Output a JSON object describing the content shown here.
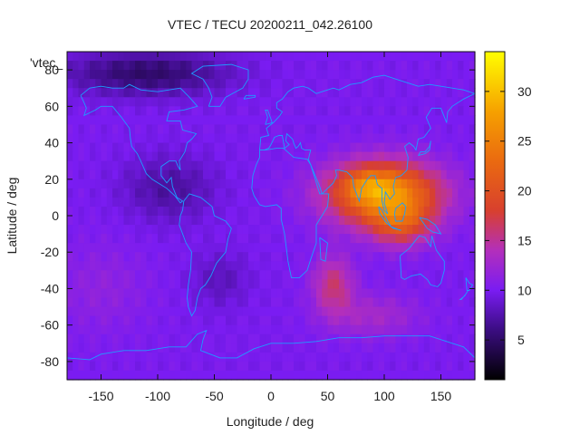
{
  "chart_data": {
    "type": "heatmap",
    "title": "VTEC / TECU 20200211_042.26100",
    "xlabel": "Longitude / deg",
    "ylabel": "Latitude / deg",
    "legend_key": "'vtec_",
    "xlim": [
      -180,
      180
    ],
    "ylim": [
      -90,
      90
    ],
    "x_ticks": [
      -150,
      -100,
      -50,
      0,
      50,
      100,
      150
    ],
    "y_ticks": [
      -80,
      -60,
      -40,
      -20,
      0,
      20,
      40,
      60,
      80
    ],
    "colorbar": {
      "min": 1,
      "max": 34,
      "ticks": [
        5,
        10,
        15,
        20,
        25,
        30
      ],
      "stops": [
        {
          "v": 1,
          "color": "#000000"
        },
        {
          "v": 6,
          "color": "#3b0d82"
        },
        {
          "v": 10,
          "color": "#7a1cf2"
        },
        {
          "v": 14,
          "color": "#b32fbb"
        },
        {
          "v": 18,
          "color": "#d8402e"
        },
        {
          "v": 23,
          "color": "#ea6a10"
        },
        {
          "v": 28,
          "color": "#f6a100"
        },
        {
          "v": 34,
          "color": "#ffff00"
        }
      ]
    },
    "grid": {
      "dlon": 5,
      "dlat": 5
    },
    "field_model": {
      "background": 10,
      "features": [
        {
          "lon": 100,
          "lat": 12,
          "slon": 48,
          "slat": 17,
          "amp": 17
        },
        {
          "lon": 115,
          "lat": -5,
          "slon": 26,
          "slat": 12,
          "amp": 7
        },
        {
          "lon": 85,
          "lat": 17,
          "slon": 22,
          "slat": 8,
          "amp": 4
        },
        {
          "lon": 55,
          "lat": -38,
          "slon": 18,
          "slat": 16,
          "amp": 6
        },
        {
          "lon": 90,
          "lat": -55,
          "slon": 40,
          "slat": 12,
          "amp": 3
        },
        {
          "lon": -90,
          "lat": 15,
          "slon": 40,
          "slat": 18,
          "amp": -3
        },
        {
          "lon": -110,
          "lat": 78,
          "slon": 70,
          "slat": 12,
          "amp": -5
        },
        {
          "lon": -45,
          "lat": -35,
          "slon": 25,
          "slat": 15,
          "amp": -2
        },
        {
          "lon": -150,
          "lat": -40,
          "slon": 40,
          "slat": 25,
          "amp": 1.5
        }
      ]
    },
    "coastlines": [
      [
        [
          -168,
          66
        ],
        [
          -160,
          70
        ],
        [
          -150,
          71
        ],
        [
          -140,
          70
        ],
        [
          -130,
          70
        ],
        [
          -125,
          72
        ],
        [
          -115,
          69
        ],
        [
          -100,
          68
        ],
        [
          -90,
          69
        ],
        [
          -80,
          70
        ],
        [
          -72,
          65
        ],
        [
          -65,
          60
        ],
        [
          -77,
          58
        ],
        [
          -90,
          57
        ],
        [
          -92,
          52
        ],
        [
          -80,
          52
        ],
        [
          -78,
          47
        ],
        [
          -66,
          45
        ],
        [
          -70,
          42
        ],
        [
          -74,
          40
        ],
        [
          -76,
          35
        ],
        [
          -81,
          30
        ],
        [
          -80,
          25
        ],
        [
          -82,
          27
        ],
        [
          -84,
          30
        ],
        [
          -90,
          30
        ],
        [
          -97,
          27
        ],
        [
          -97,
          22
        ],
        [
          -92,
          18
        ],
        [
          -88,
          21
        ],
        [
          -87,
          16
        ],
        [
          -83,
          10
        ],
        [
          -78,
          8
        ],
        [
          -80,
          7
        ],
        [
          -85,
          11
        ],
        [
          -92,
          15
        ],
        [
          -105,
          20
        ],
        [
          -110,
          23
        ],
        [
          -115,
          30
        ],
        [
          -118,
          34
        ],
        [
          -123,
          38
        ],
        [
          -124,
          42
        ],
        [
          -125,
          48
        ],
        [
          -132,
          54
        ],
        [
          -140,
          60
        ],
        [
          -150,
          60
        ],
        [
          -155,
          58
        ],
        [
          -165,
          55
        ],
        [
          -163,
          59
        ],
        [
          -165,
          62
        ],
        [
          -168,
          66
        ]
      ],
      [
        [
          -77,
          8
        ],
        [
          -72,
          12
        ],
        [
          -62,
          10
        ],
        [
          -52,
          5
        ],
        [
          -50,
          0
        ],
        [
          -40,
          -3
        ],
        [
          -35,
          -7
        ],
        [
          -38,
          -13
        ],
        [
          -40,
          -20
        ],
        [
          -48,
          -26
        ],
        [
          -53,
          -33
        ],
        [
          -58,
          -38
        ],
        [
          -62,
          -40
        ],
        [
          -65,
          -45
        ],
        [
          -67,
          -52
        ],
        [
          -70,
          -55
        ],
        [
          -73,
          -50
        ],
        [
          -74,
          -45
        ],
        [
          -73,
          -38
        ],
        [
          -71,
          -30
        ],
        [
          -70,
          -20
        ],
        [
          -75,
          -15
        ],
        [
          -81,
          -5
        ],
        [
          -80,
          0
        ],
        [
          -78,
          3
        ],
        [
          -77,
          8
        ]
      ],
      [
        [
          -10,
          36
        ],
        [
          -5,
          36
        ],
        [
          5,
          37
        ],
        [
          11,
          37
        ],
        [
          20,
          32
        ],
        [
          32,
          31
        ],
        [
          35,
          28
        ],
        [
          43,
          12
        ],
        [
          51,
          12
        ],
        [
          50,
          5
        ],
        [
          40,
          -5
        ],
        [
          40,
          -15
        ],
        [
          35,
          -24
        ],
        [
          32,
          -30
        ],
        [
          25,
          -34
        ],
        [
          18,
          -34
        ],
        [
          15,
          -25
        ],
        [
          12,
          -10
        ],
        [
          9,
          -2
        ],
        [
          9,
          4
        ],
        [
          5,
          6
        ],
        [
          -5,
          5
        ],
        [
          -10,
          6
        ],
        [
          -15,
          11
        ],
        [
          -17,
          15
        ],
        [
          -16,
          22
        ],
        [
          -13,
          28
        ],
        [
          -10,
          32
        ],
        [
          -10,
          36
        ]
      ],
      [
        [
          -10,
          36
        ],
        [
          -9,
          43
        ],
        [
          -2,
          44
        ],
        [
          -4,
          48
        ],
        [
          2,
          51
        ],
        [
          5,
          53
        ],
        [
          8,
          55
        ],
        [
          10,
          57
        ],
        [
          5,
          59
        ],
        [
          5,
          62
        ],
        [
          10,
          64
        ],
        [
          15,
          68
        ],
        [
          20,
          70
        ],
        [
          28,
          71
        ],
        [
          33,
          70
        ],
        [
          40,
          67
        ],
        [
          45,
          68
        ],
        [
          55,
          70
        ],
        [
          60,
          69
        ],
        [
          70,
          72
        ],
        [
          80,
          73
        ],
        [
          90,
          76
        ],
        [
          100,
          77
        ],
        [
          110,
          75
        ],
        [
          120,
          73
        ],
        [
          130,
          71
        ],
        [
          140,
          72
        ],
        [
          150,
          71
        ],
        [
          160,
          70
        ],
        [
          170,
          69
        ],
        [
          180,
          67
        ],
        [
          170,
          64
        ],
        [
          160,
          60
        ],
        [
          156,
          57
        ],
        [
          155,
          51
        ],
        [
          150,
          59
        ],
        [
          142,
          59
        ],
        [
          137,
          54
        ],
        [
          141,
          48
        ],
        [
          135,
          43
        ],
        [
          130,
          42
        ],
        [
          128,
          36
        ],
        [
          126,
          38
        ],
        [
          122,
          40
        ],
        [
          118,
          38
        ],
        [
          121,
          32
        ],
        [
          120,
          25
        ],
        [
          115,
          22
        ],
        [
          110,
          21
        ],
        [
          108,
          16
        ],
        [
          109,
          12
        ],
        [
          105,
          9
        ],
        [
          101,
          13
        ],
        [
          100,
          7
        ],
        [
          103,
          1
        ],
        [
          100,
          3
        ],
        [
          98,
          8
        ],
        [
          98,
          15
        ],
        [
          94,
          17
        ],
        [
          92,
          22
        ],
        [
          88,
          22
        ],
        [
          85,
          20
        ],
        [
          80,
          15
        ],
        [
          78,
          8
        ],
        [
          73,
          16
        ],
        [
          72,
          21
        ],
        [
          67,
          24
        ],
        [
          60,
          25
        ],
        [
          57,
          25
        ],
        [
          58,
          22
        ],
        [
          55,
          18
        ],
        [
          50,
          15
        ],
        [
          45,
          12
        ],
        [
          43,
          16
        ],
        [
          39,
          22
        ],
        [
          35,
          28
        ],
        [
          33,
          31
        ],
        [
          35,
          36
        ],
        [
          30,
          36
        ],
        [
          27,
          37
        ],
        [
          26,
          40
        ],
        [
          24,
          38
        ],
        [
          22,
          37
        ],
        [
          20,
          40
        ],
        [
          19,
          42
        ],
        [
          14,
          45
        ],
        [
          13,
          41
        ],
        [
          16,
          39
        ],
        [
          12,
          37
        ],
        [
          10,
          44
        ],
        [
          7,
          44
        ],
        [
          3,
          43
        ],
        [
          0,
          39
        ],
        [
          -2,
          37
        ],
        [
          -6,
          36
        ],
        [
          -10,
          36
        ]
      ],
      [
        [
          114,
          -22
        ],
        [
          115,
          -34
        ],
        [
          118,
          -35
        ],
        [
          124,
          -33
        ],
        [
          132,
          -32
        ],
        [
          138,
          -35
        ],
        [
          141,
          -38
        ],
        [
          147,
          -39
        ],
        [
          150,
          -37
        ],
        [
          153,
          -30
        ],
        [
          153,
          -25
        ],
        [
          146,
          -19
        ],
        [
          142,
          -11
        ],
        [
          141,
          -17
        ],
        [
          136,
          -12
        ],
        [
          131,
          -11
        ],
        [
          127,
          -14
        ],
        [
          122,
          -18
        ],
        [
          114,
          -22
        ]
      ],
      [
        [
          -5,
          50
        ],
        [
          -3,
          54
        ],
        [
          -5,
          58
        ],
        [
          -3,
          58
        ],
        [
          0,
          53
        ],
        [
          1,
          51
        ],
        [
          -5,
          50
        ]
      ],
      [
        [
          95,
          5
        ],
        [
          98,
          3
        ],
        [
          104,
          -4
        ],
        [
          106,
          -6
        ],
        [
          102,
          -4
        ],
        [
          96,
          1
        ],
        [
          95,
          5
        ]
      ],
      [
        [
          106,
          -6
        ],
        [
          114,
          -8
        ],
        [
          115,
          -8
        ],
        [
          108,
          -7
        ],
        [
          106,
          -6
        ]
      ],
      [
        [
          109,
          1
        ],
        [
          110,
          4
        ],
        [
          116,
          7
        ],
        [
          119,
          5
        ],
        [
          118,
          1
        ],
        [
          116,
          -3
        ],
        [
          110,
          -3
        ],
        [
          109,
          1
        ]
      ],
      [
        [
          131,
          -1
        ],
        [
          138,
          -2
        ],
        [
          145,
          -5
        ],
        [
          150,
          -10
        ],
        [
          143,
          -9
        ],
        [
          138,
          -7
        ],
        [
          131,
          -1
        ]
      ],
      [
        [
          43,
          -12
        ],
        [
          50,
          -15
        ],
        [
          48,
          -25
        ],
        [
          44,
          -24
        ],
        [
          43,
          -12
        ]
      ],
      [
        [
          130,
          33
        ],
        [
          132,
          35
        ],
        [
          136,
          35
        ],
        [
          140,
          38
        ],
        [
          141,
          41
        ],
        [
          140,
          36
        ],
        [
          136,
          34
        ],
        [
          130,
          33
        ]
      ],
      [
        [
          -55,
          60
        ],
        [
          -45,
          60
        ],
        [
          -40,
          65
        ],
        [
          -25,
          70
        ],
        [
          -20,
          75
        ],
        [
          -20,
          80
        ],
        [
          -35,
          83
        ],
        [
          -60,
          82
        ],
        [
          -70,
          78
        ],
        [
          -60,
          75
        ],
        [
          -55,
          70
        ],
        [
          -52,
          65
        ],
        [
          -55,
          60
        ]
      ],
      [
        [
          -24,
          64
        ],
        [
          -14,
          65
        ],
        [
          -14,
          66
        ],
        [
          -22,
          66
        ],
        [
          -24,
          64
        ]
      ],
      [
        [
          -180,
          -78
        ],
        [
          -160,
          -79
        ],
        [
          -150,
          -76
        ],
        [
          -130,
          -74
        ],
        [
          -110,
          -74
        ],
        [
          -90,
          -72
        ],
        [
          -75,
          -72
        ],
        [
          -65,
          -65
        ],
        [
          -57,
          -63
        ],
        [
          -60,
          -68
        ],
        [
          -62,
          -74
        ],
        [
          -45,
          -78
        ],
        [
          -30,
          -78
        ],
        [
          -15,
          -73
        ],
        [
          0,
          -70
        ],
        [
          20,
          -70
        ],
        [
          40,
          -69
        ],
        [
          60,
          -67
        ],
        [
          80,
          -67
        ],
        [
          100,
          -66
        ],
        [
          120,
          -66
        ],
        [
          140,
          -66
        ],
        [
          160,
          -70
        ],
        [
          170,
          -72
        ],
        [
          180,
          -78
        ]
      ],
      [
        [
          172,
          -34
        ],
        [
          175,
          -37
        ],
        [
          178,
          -38
        ],
        [
          175,
          -41
        ],
        [
          173,
          -41
        ],
        [
          172,
          -34
        ]
      ],
      [
        [
          174,
          -41
        ],
        [
          172,
          -43
        ],
        [
          168,
          -46
        ],
        [
          167,
          -46
        ],
        [
          171,
          -44
        ],
        [
          174,
          -41
        ]
      ]
    ]
  }
}
